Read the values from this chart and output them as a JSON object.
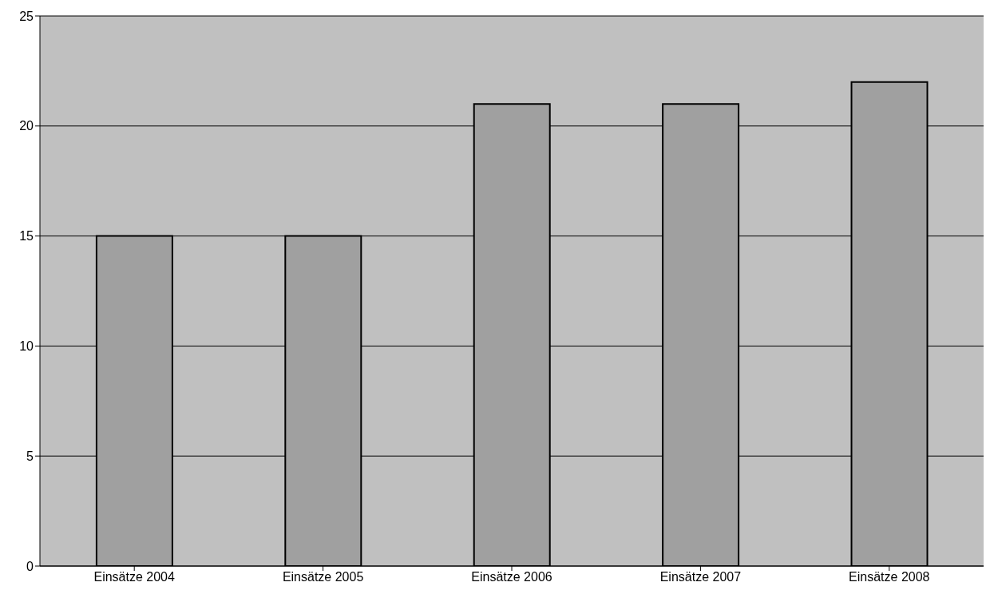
{
  "chart_data": {
    "type": "bar",
    "categories": [
      "Einsätze 2004",
      "Einsätze 2005",
      "Einsätze 2006",
      "Einsätze 2007",
      "Einsätze 2008"
    ],
    "values": [
      15,
      15,
      21,
      21,
      22
    ],
    "color": "#a0a0a0",
    "ylim": [
      0,
      25
    ],
    "yticks": [
      0,
      5,
      10,
      15,
      20,
      25
    ],
    "grid": "y"
  }
}
